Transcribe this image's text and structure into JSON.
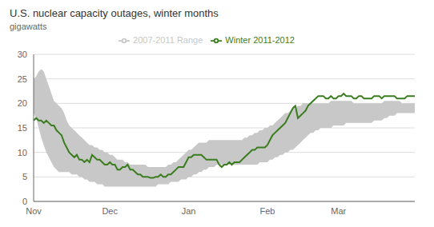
{
  "chart_data": {
    "type": "line",
    "title": "U.S. nuclear capacity outages, winter months",
    "ylabel": "gigawatts",
    "ylim": [
      0,
      30
    ],
    "yticks": [
      0,
      5,
      10,
      15,
      20,
      25,
      30
    ],
    "grid": true,
    "legend": "top",
    "categories": [
      "Nov",
      null,
      null,
      null,
      null,
      null,
      null,
      null,
      null,
      null,
      null,
      null,
      null,
      null,
      null,
      null,
      null,
      null,
      null,
      null,
      null,
      null,
      null,
      null,
      null,
      null,
      null,
      null,
      null,
      null,
      "Dec",
      null,
      null,
      null,
      null,
      null,
      null,
      null,
      null,
      null,
      null,
      null,
      null,
      null,
      null,
      null,
      null,
      null,
      null,
      null,
      null,
      null,
      null,
      null,
      null,
      null,
      null,
      null,
      null,
      null,
      null,
      "Jan",
      null,
      null,
      null,
      null,
      null,
      null,
      null,
      null,
      null,
      null,
      null,
      null,
      null,
      null,
      null,
      null,
      null,
      null,
      null,
      null,
      null,
      null,
      null,
      null,
      null,
      null,
      null,
      null,
      null,
      null,
      "Feb",
      null,
      null,
      null,
      null,
      null,
      null,
      null,
      null,
      null,
      null,
      null,
      null,
      null,
      null,
      null,
      null,
      null,
      null,
      null,
      null,
      null,
      null,
      null,
      null,
      null,
      null,
      null,
      "Mar",
      null,
      null,
      null,
      null,
      null,
      null,
      null,
      null,
      null,
      null,
      null,
      null,
      null,
      null,
      null,
      null,
      null,
      null,
      null,
      null,
      null,
      null,
      null,
      null,
      null,
      null,
      null,
      null,
      null,
      null
    ],
    "series": [
      {
        "name": "2007-2011 Range",
        "type": "range",
        "color": "#c8c8c8",
        "lower": [
          18.0,
          17.0,
          15.0,
          13.0,
          11.5,
          10.0,
          9.0,
          8.0,
          7.0,
          6.5,
          6.0,
          6.0,
          6.0,
          6.0,
          6.0,
          5.5,
          5.5,
          5.5,
          5.0,
          5.0,
          4.5,
          4.5,
          4.0,
          4.0,
          4.0,
          3.5,
          3.5,
          3.5,
          3.0,
          3.0,
          3.0,
          3.0,
          3.0,
          3.0,
          3.0,
          3.0,
          3.0,
          3.0,
          3.0,
          3.0,
          3.0,
          3.0,
          3.0,
          3.0,
          3.0,
          3.0,
          3.0,
          3.0,
          3.0,
          3.5,
          3.5,
          3.5,
          3.5,
          3.5,
          4.0,
          4.0,
          4.0,
          4.0,
          4.5,
          4.5,
          4.5,
          5.0,
          5.0,
          5.5,
          5.5,
          6.0,
          6.0,
          6.5,
          6.5,
          7.0,
          7.0,
          7.0,
          7.5,
          7.5,
          7.5,
          7.5,
          7.5,
          7.5,
          7.5,
          7.5,
          7.5,
          7.5,
          7.5,
          7.5,
          7.5,
          7.5,
          7.5,
          7.5,
          7.5,
          8.0,
          8.0,
          8.0,
          8.0,
          8.5,
          8.5,
          9.0,
          9.0,
          9.5,
          9.5,
          10.0,
          10.0,
          10.5,
          10.5,
          11.0,
          11.5,
          12.0,
          12.5,
          13.0,
          13.5,
          14.0,
          14.0,
          14.5,
          14.5,
          15.0,
          15.0,
          15.0,
          15.0,
          15.0,
          15.5,
          15.5,
          15.5,
          15.5,
          15.5,
          16.0,
          16.0,
          16.0,
          16.0,
          16.0,
          16.0,
          16.0,
          16.0,
          16.0,
          16.0,
          16.0,
          16.5,
          16.5,
          16.5,
          16.5,
          17.0,
          17.0,
          17.5,
          17.5,
          17.5,
          18.0,
          18.0,
          18.0,
          18.0,
          18.0,
          18.0,
          18.0,
          18.0
        ],
        "upper": [
          25.0,
          25.5,
          26.5,
          27.0,
          26.5,
          25.0,
          23.5,
          22.0,
          20.5,
          20.0,
          19.5,
          19.0,
          18.0,
          16.5,
          15.5,
          15.0,
          14.5,
          14.0,
          13.5,
          13.0,
          12.5,
          12.0,
          11.5,
          11.5,
          11.0,
          11.0,
          10.5,
          10.5,
          10.0,
          10.0,
          9.5,
          9.5,
          9.0,
          8.5,
          8.5,
          8.5,
          8.0,
          8.0,
          7.5,
          7.5,
          7.5,
          7.5,
          7.5,
          7.5,
          7.5,
          7.0,
          7.0,
          7.0,
          7.0,
          7.0,
          7.0,
          7.0,
          7.0,
          7.5,
          7.5,
          8.0,
          8.0,
          8.5,
          9.0,
          9.5,
          10.0,
          10.5,
          10.5,
          11.0,
          11.5,
          12.0,
          12.0,
          12.0,
          12.0,
          12.5,
          12.5,
          12.5,
          12.5,
          12.5,
          12.5,
          12.5,
          12.5,
          12.5,
          12.5,
          12.5,
          12.5,
          12.5,
          12.5,
          13.0,
          13.0,
          13.5,
          13.5,
          14.0,
          14.0,
          14.5,
          14.5,
          15.0,
          15.0,
          15.5,
          15.5,
          16.0,
          16.5,
          17.0,
          17.5,
          18.0,
          18.0,
          18.5,
          19.0,
          19.0,
          19.5,
          19.5,
          20.0,
          20.0,
          20.0,
          20.0,
          20.0,
          20.0,
          20.0,
          20.0,
          20.0,
          20.0,
          20.0,
          20.5,
          20.5,
          20.5,
          20.5,
          20.5,
          20.5,
          20.5,
          20.5,
          20.5,
          20.0,
          20.0,
          20.0,
          20.0,
          20.0,
          20.0,
          20.0,
          20.0,
          20.0,
          20.0,
          20.0,
          20.0,
          20.5,
          20.5,
          20.5,
          20.5,
          20.5,
          20.5,
          20.5,
          20.0,
          20.0,
          20.0,
          20.0,
          20.0,
          20.0
        ]
      },
      {
        "name": "Winter 2011-2012",
        "type": "line",
        "color": "#3a7d1e",
        "values": [
          16.5,
          17.0,
          16.5,
          16.5,
          16.0,
          16.5,
          16.0,
          15.5,
          15.5,
          14.5,
          14.0,
          13.5,
          12.0,
          11.0,
          10.0,
          9.5,
          9.0,
          9.5,
          8.5,
          8.5,
          8.0,
          8.5,
          8.0,
          9.5,
          9.0,
          8.5,
          8.5,
          8.0,
          7.5,
          7.5,
          8.0,
          7.5,
          7.5,
          6.5,
          6.5,
          7.0,
          7.0,
          7.5,
          6.5,
          6.5,
          6.0,
          5.5,
          5.5,
          5.0,
          5.0,
          5.0,
          4.8,
          4.8,
          5.0,
          5.0,
          5.5,
          5.0,
          5.0,
          5.5,
          5.5,
          6.0,
          6.5,
          7.0,
          7.0,
          7.0,
          8.0,
          9.0,
          9.0,
          9.5,
          9.5,
          9.5,
          9.5,
          9.0,
          8.5,
          8.5,
          8.5,
          8.5,
          8.5,
          7.5,
          7.0,
          7.5,
          7.5,
          8.0,
          7.5,
          8.0,
          8.0,
          8.0,
          8.5,
          9.0,
          9.5,
          10.0,
          10.5,
          10.5,
          11.0,
          11.0,
          11.0,
          11.0,
          11.5,
          12.5,
          13.5,
          14.0,
          14.5,
          15.0,
          15.5,
          16.0,
          17.0,
          18.0,
          19.0,
          19.5,
          17.0,
          17.5,
          18.0,
          18.5,
          19.5,
          20.0,
          20.5,
          21.0,
          21.5,
          21.5,
          21.5,
          21.0,
          21.0,
          21.5,
          21.0,
          21.0,
          21.5,
          21.5,
          22.0,
          21.5,
          21.5,
          21.5,
          21.0,
          21.0,
          21.5,
          21.5,
          21.0,
          21.0,
          21.0,
          21.0,
          21.5,
          21.5,
          21.5,
          21.0,
          21.5,
          21.5,
          21.5,
          21.5,
          21.5,
          21.0,
          21.0,
          21.0,
          21.0,
          21.5,
          21.5,
          21.5,
          21.5
        ]
      }
    ]
  }
}
